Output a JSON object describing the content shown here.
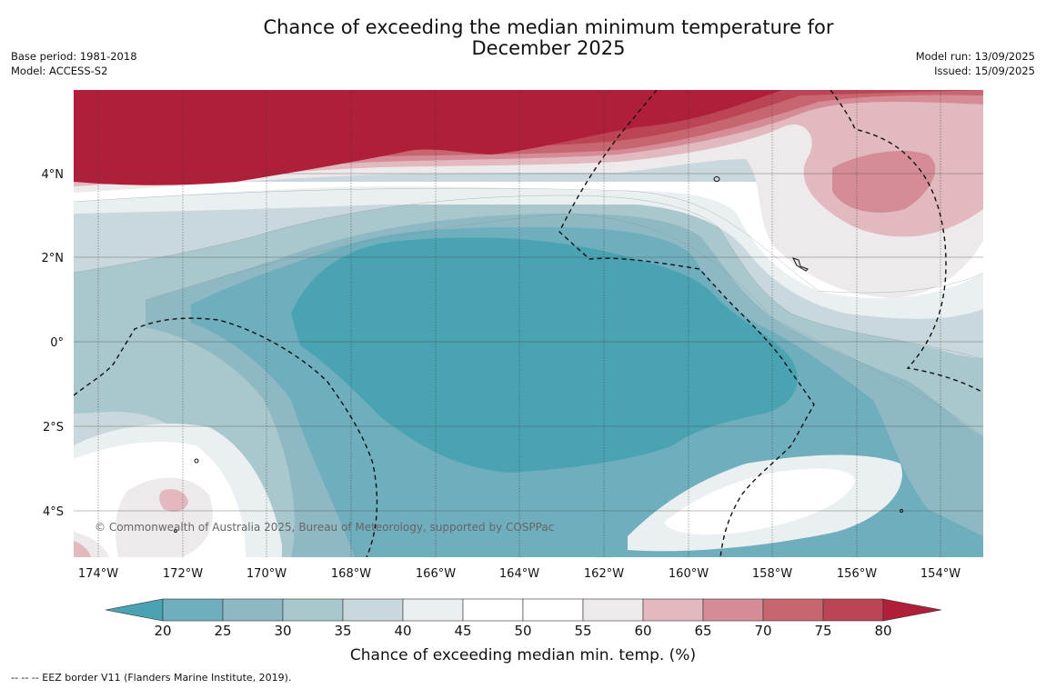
{
  "title": {
    "line1": "Chance of exceeding the median minimum temperature for",
    "line2": "December 2025"
  },
  "meta_left": {
    "base_period": "Base period: 1981-2018",
    "model": "Model: ACCESS-S2"
  },
  "meta_right": {
    "model_run": "Model run: 13/09/2025",
    "issued": "Issued: 15/09/2025"
  },
  "copyright": "© Commonwealth of Australia 2025, Bureau of Meteorology, supported by COSPPac",
  "lat_labels": [
    "4°N",
    "2°N",
    "0°",
    "2°S",
    "4°S"
  ],
  "lon_labels": [
    "174°W",
    "172°W",
    "170°W",
    "168°W",
    "166°W",
    "164°W",
    "162°W",
    "160°W",
    "158°W",
    "156°W",
    "154°W"
  ],
  "colorbar": {
    "label": "Chance of exceeding median min. temp. (%)",
    "ticks": [
      "20",
      "25",
      "30",
      "35",
      "40",
      "45",
      "50",
      "55",
      "60",
      "65",
      "70",
      "75",
      "80"
    ],
    "colors": {
      "below_20": "#4aa3b3",
      "20-25": "#6eaebd",
      "25-30": "#8eb9c4",
      "30-35": "#a9c8cd",
      "35-40": "#c9d8dc",
      "40-45": "#eaf0f1",
      "45-50": "#ffffff",
      "50-55": "#ffffff",
      "55-60": "#eeeaeb",
      "60-65": "#e1b9bf",
      "65-70": "#d58c97",
      "70-75": "#c86670",
      "75-80": "#bb4455",
      "above_80": "#b01f3a"
    }
  },
  "footer": "--  --  -- EEZ border V11 (Flanders Marine Institute, 2019)."
}
